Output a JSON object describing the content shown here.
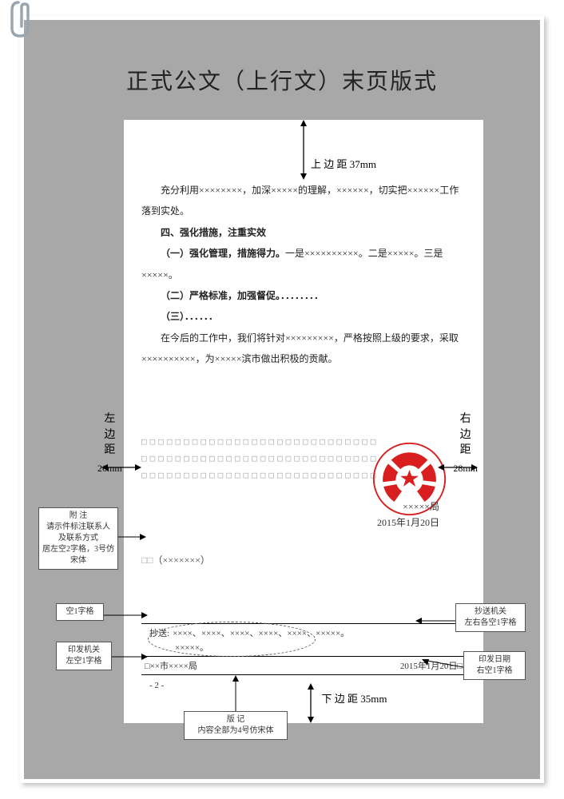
{
  "title": "正式公文（上行文）末页版式",
  "margins": {
    "top_label": "上 边 距 37mm",
    "bottom_label": "下 边 距 35mm",
    "left_vert": [
      "左",
      "边",
      "距",
      "26mm"
    ],
    "right_vert": [
      "右",
      "边",
      "距",
      "28mm"
    ]
  },
  "body": {
    "p1": "充分利用××××××××，加深×××××的理解，××××××，切实把××××××工作落到实处。",
    "h1": "四、强化措施，注重实效",
    "h2a_bold": "（一）强化管理，措施得力。",
    "h2a_tail": "一是××××××××××。二是×××××。三是×××××。",
    "h2b": "（二）严格标准，加强督促。．．．．．．．．",
    "h2c": "（三）．．．．．．",
    "p2": "在今后的工作中，我们将针对×××××××××，严格按照上级的要求，采取××××××××××，为×××××滨市做出积极的贡献。"
  },
  "placeholders": "□□□□□□□□□□□□□□□□□□□□□□□□□□□□",
  "signature_org": "×××××局",
  "signature_date": "2015年1月20日",
  "paren_note_prefix": "□□",
  "paren_note": "（×××××××）",
  "copy": {
    "label": "抄送:",
    "line1": "××××、××××、××××、××××、××××、×××××。",
    "issuer": "□××市××××局",
    "issue_date": "2015年1月20日□"
  },
  "page_number": "- 2 -",
  "callouts": {
    "annex": "附    注\n请示件标注联系人\n及联系方式\n居左空2字格，3号仿宋体",
    "blank1": "空1字格",
    "issuer_left": "印发机关\n左空1字格",
    "copy_margin": "抄送机关\n左右各空1字格",
    "issue_date_right": "印发日期\n右空1字格",
    "banji": "版    记\n内容全部为4号仿宋体"
  },
  "colors": {
    "seal_red": "#d81e1e",
    "gray_bg": "#a8a8a8",
    "placeholder": "#aaaaaa"
  }
}
